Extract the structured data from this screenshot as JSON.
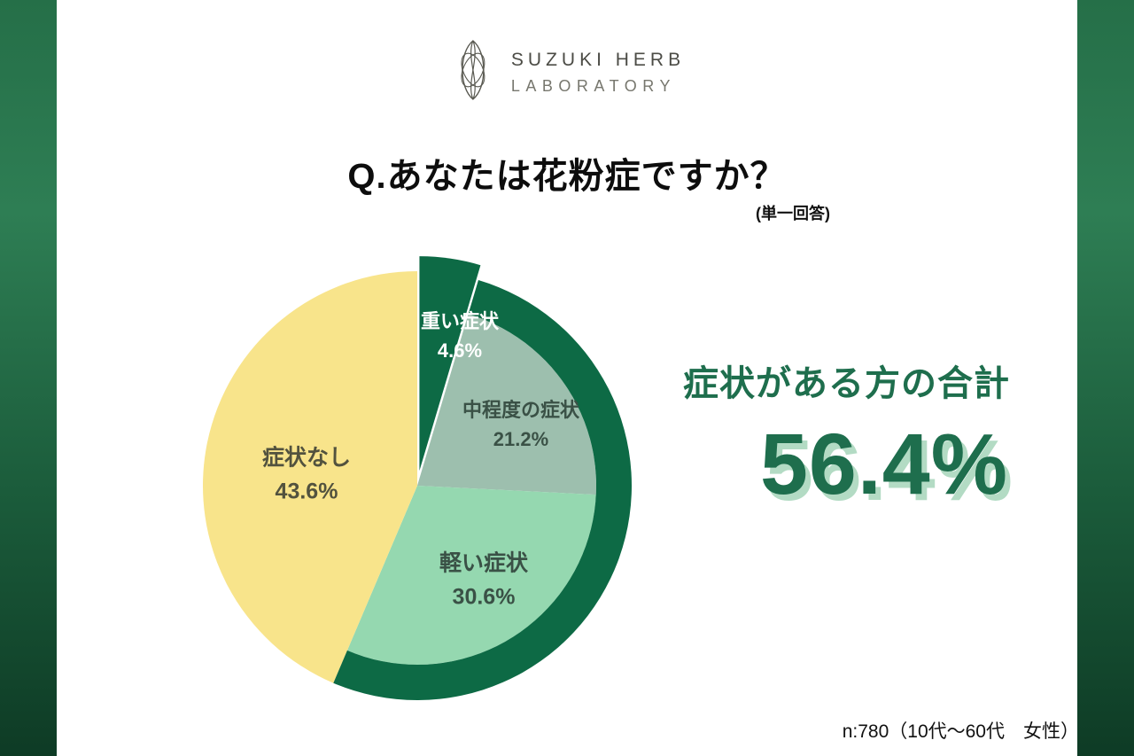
{
  "brand": {
    "name_line1": "SUZUKI HERB",
    "name_line2": "LABORATORY",
    "logo_icon": "botanical-leaf-emblem"
  },
  "question": {
    "title": "Q.あなたは花粉症ですか？",
    "note": "(単一回答)"
  },
  "chart_data": {
    "type": "pie",
    "title": "Q.あなたは花粉症ですか？",
    "unit": "%",
    "direction": "clockwise",
    "start_angle_deg": 0,
    "segments": [
      {
        "label": "重い症状",
        "value": 4.6,
        "value_label": "4.6%",
        "color": "#0d6a45",
        "text_color": "#ffffff",
        "exploded": true,
        "in_highlight": true
      },
      {
        "label": "中程度の症状",
        "value": 21.2,
        "value_label": "21.2%",
        "color": "#9dbfae",
        "text_color": "#3a5146",
        "exploded": false,
        "in_highlight": true
      },
      {
        "label": "軽い症状",
        "value": 30.6,
        "value_label": "30.6%",
        "color": "#95d8b0",
        "text_color": "#3a5146",
        "exploded": false,
        "in_highlight": true
      },
      {
        "label": "症状なし",
        "value": 43.6,
        "value_label": "43.6%",
        "color": "#f8e48b",
        "text_color": "#52523e",
        "exploded": false,
        "in_highlight": false
      }
    ],
    "highlight_ring": {
      "color": "#0d6a45",
      "covers_percent": 56.4,
      "meaning": "症状がある方の合計"
    },
    "legend_position": "none",
    "labels_on_slices": true
  },
  "summary": {
    "label": "症状がある方の合計",
    "value": "56.4%"
  },
  "footnote": "n:780（10代〜60代　女性）",
  "theme": {
    "accent_green": "#1e6e4d",
    "ring_green": "#0d6a45",
    "shadow_green": "#b3dbc4",
    "side_gradient_top": "#2e7e54",
    "side_gradient_bottom": "#0e3b25",
    "background": "#ffffff"
  }
}
